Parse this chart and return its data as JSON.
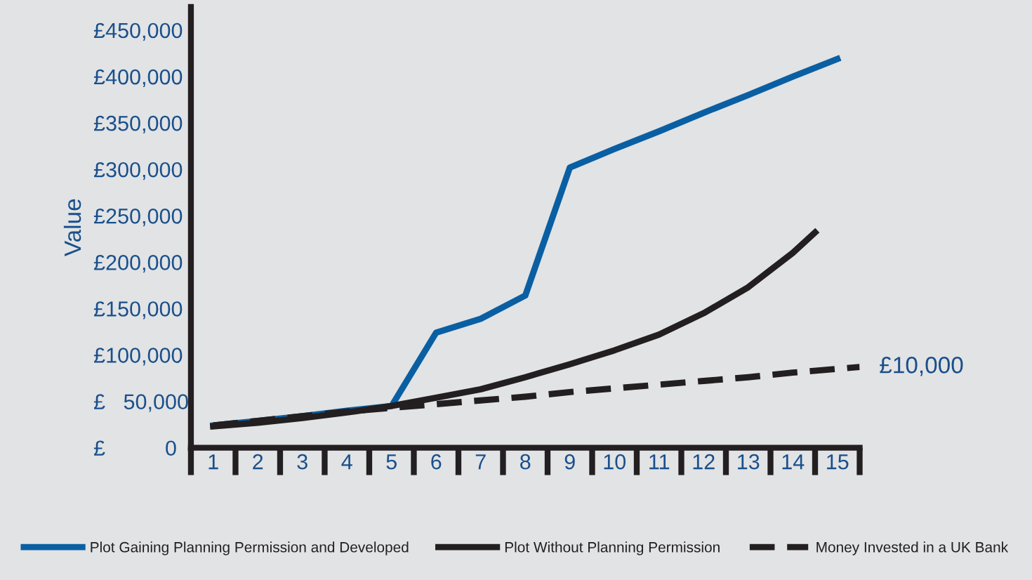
{
  "chart_data": {
    "type": "line",
    "ylabel": "Value",
    "xlim": [
      0.5,
      15.5
    ],
    "xticks": [
      1,
      2,
      3,
      4,
      5,
      6,
      7,
      8,
      9,
      10,
      11,
      12,
      13,
      14,
      15
    ],
    "ylim": [
      0,
      475000
    ],
    "yticks": [
      {
        "value": 0,
        "label": "£          0"
      },
      {
        "value": 50000,
        "label": "£   50,000"
      },
      {
        "value": 100000,
        "label": "£100,000"
      },
      {
        "value": 150000,
        "label": "£150,000"
      },
      {
        "value": 200000,
        "label": "£200,000"
      },
      {
        "value": 250000,
        "label": "£250,000"
      },
      {
        "value": 300000,
        "label": "£300,000"
      },
      {
        "value": 350000,
        "label": "£350,000"
      },
      {
        "value": 400000,
        "label": "£400,000"
      },
      {
        "value": 450000,
        "label": "£450,000"
      }
    ],
    "grid": false,
    "legend": "bottom",
    "marker": "none",
    "series": [
      {
        "name": "Plot Gaining Planning Permission and Developed",
        "color": "#0a5fa3",
        "line_style": "solid",
        "x": [
          1,
          2,
          3,
          4,
          5,
          6,
          7,
          8,
          9,
          10,
          11,
          12,
          13,
          14,
          15
        ],
        "values": [
          24000,
          29000,
          34000,
          40000,
          45000,
          124000,
          139000,
          164000,
          302000,
          322000,
          341000,
          361000,
          380000,
          400000,
          419000
        ]
      },
      {
        "name": "Plot Without Planning Permission",
        "color": "#231f20",
        "line_style": "solid",
        "x": [
          1,
          2,
          3,
          4,
          5,
          6,
          7,
          8,
          9,
          10,
          11,
          12,
          13,
          14,
          14.5
        ],
        "values": [
          23000,
          27000,
          32000,
          38000,
          45000,
          54000,
          63000,
          76000,
          90000,
          105000,
          122000,
          145000,
          173000,
          210000,
          232000
        ]
      },
      {
        "name": "Money Invested in a UK Bank",
        "color": "#231f20",
        "line_style": "dashed",
        "x": [
          1,
          2,
          3,
          4,
          5,
          6,
          7,
          8,
          9,
          10,
          11,
          12,
          13,
          14,
          15,
          15.5
        ],
        "values": [
          24000,
          29000,
          34000,
          39000,
          43000,
          47000,
          51000,
          55000,
          60000,
          64000,
          68000,
          72000,
          76000,
          81000,
          85000,
          87000
        ]
      }
    ],
    "annotations": [
      {
        "text": "£10,000",
        "x": 15.5,
        "y": 87000
      }
    ]
  }
}
